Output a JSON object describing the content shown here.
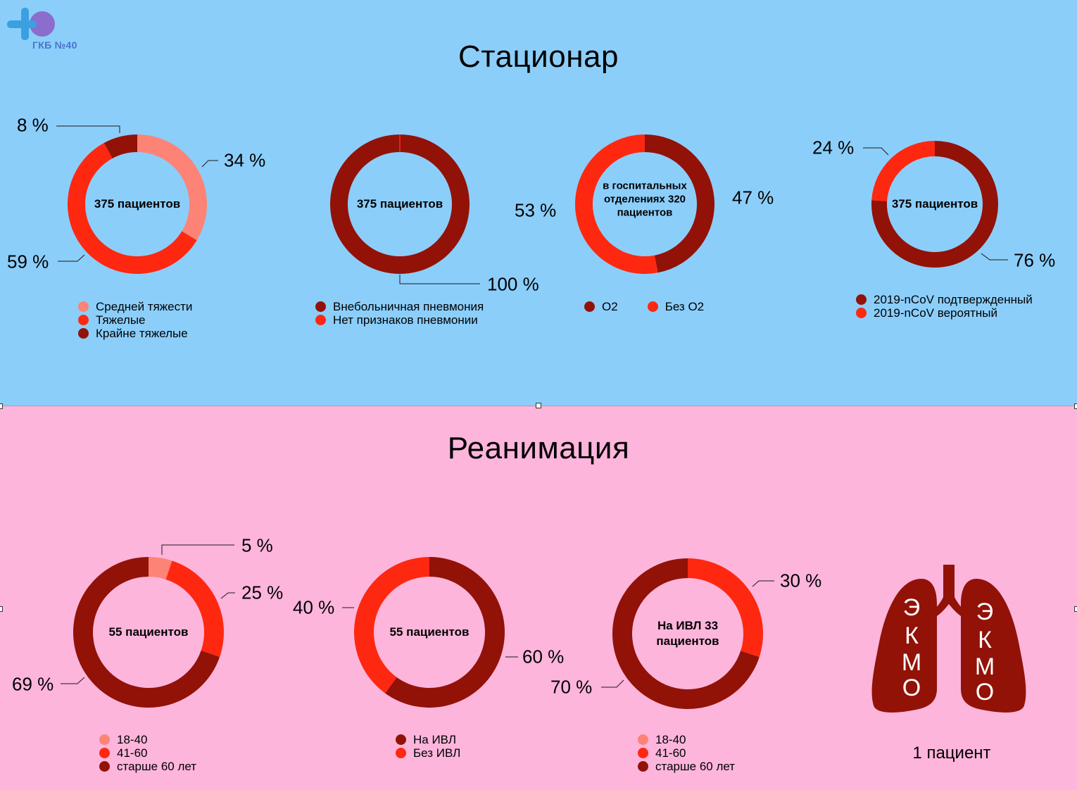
{
  "logo": {
    "text": "ГКБ №40"
  },
  "sections": {
    "top_title": "Стационар",
    "bottom_title": "Реанимация"
  },
  "colors": {
    "light": "#fc8375",
    "medium": "#fe2811",
    "dark": "#921208",
    "top_bg": "#8ccefa",
    "bottom_bg": "#fdb5dc"
  },
  "charts": [
    {
      "center": "375 пациентов",
      "slices": [
        {
          "label": "Средней тяжести",
          "value": 34,
          "pct_label": "34 %",
          "color": "#fc8375"
        },
        {
          "label": "Тяжелые",
          "value": 59,
          "pct_label": "59 %",
          "color": "#fe2811"
        },
        {
          "label": "Крайне тяжелые",
          "value": 8,
          "pct_label": "8 %",
          "color": "#921208"
        }
      ]
    },
    {
      "center": "375 пациентов",
      "slices": [
        {
          "label": "Внебольничная пневмония",
          "value": 100,
          "pct_label": "100 %",
          "color": "#921208"
        },
        {
          "label": "Нет признаков пневмонии",
          "value": 0,
          "pct_label": "",
          "color": "#fe2811"
        }
      ]
    },
    {
      "center": "в госпитальных отделениях 320 пациентов",
      "slices": [
        {
          "label": "O2",
          "value": 47,
          "pct_label": "47 %",
          "color": "#921208"
        },
        {
          "label": "Без O2",
          "value": 53,
          "pct_label": "53 %",
          "color": "#fe2811"
        }
      ]
    },
    {
      "center": "375 пациентов",
      "slices": [
        {
          "label": "2019-nCoV подтвержденный",
          "value": 76,
          "pct_label": "76 %",
          "color": "#921208"
        },
        {
          "label": "2019-nCoV вероятный",
          "value": 24,
          "pct_label": "24 %",
          "color": "#fe2811"
        }
      ]
    },
    {
      "center": "55 пациентов",
      "slices": [
        {
          "label": "18-40",
          "value": 5,
          "pct_label": "5 %",
          "color": "#fc8375"
        },
        {
          "label": "41-60",
          "value": 25,
          "pct_label": "25 %",
          "color": "#fe2811"
        },
        {
          "label": "старше 60 лет",
          "value": 69,
          "pct_label": "69 %",
          "color": "#921208"
        }
      ]
    },
    {
      "center": "55 пациентов",
      "slices": [
        {
          "label": "На ИВЛ",
          "value": 60,
          "pct_label": "60 %",
          "color": "#921208"
        },
        {
          "label": "Без ИВЛ",
          "value": 40,
          "pct_label": "40 %",
          "color": "#fe2811"
        }
      ]
    },
    {
      "center": "На ИВЛ 33 пациентов",
      "slices": [
        {
          "label": "18-40",
          "value": 0,
          "pct_label": "",
          "color": "#fc8375"
        },
        {
          "label": "41-60",
          "value": 30,
          "pct_label": "30 %",
          "color": "#fe2811"
        },
        {
          "label": "старше 60 лет",
          "value": 70,
          "pct_label": "70 %",
          "color": "#921208"
        }
      ]
    }
  ],
  "ekmo": {
    "left_letters": [
      "Э",
      "К",
      "М",
      "О"
    ],
    "right_letters": [
      "Э",
      "К",
      "М",
      "О"
    ],
    "caption": "1 пациент"
  },
  "chart_data": [
    {
      "type": "pie",
      "categories": [
        "Средней тяжести",
        "Тяжелые",
        "Крайне тяжелые"
      ],
      "values": [
        34,
        59,
        8
      ],
      "title": ""
    },
    {
      "type": "pie",
      "categories": [
        "Внебольничная пневмония",
        "Нет признаков пневмонии"
      ],
      "values": [
        100,
        0
      ],
      "title": ""
    },
    {
      "type": "pie",
      "categories": [
        "O2",
        "Без O2"
      ],
      "values": [
        47,
        53
      ],
      "title": ""
    },
    {
      "type": "pie",
      "categories": [
        "2019-nCoV подтвержденный",
        "2019-nCoV вероятный"
      ],
      "values": [
        76,
        24
      ],
      "title": ""
    },
    {
      "type": "pie",
      "categories": [
        "18-40",
        "41-60",
        "старше 60 лет"
      ],
      "values": [
        5,
        25,
        69
      ],
      "title": ""
    },
    {
      "type": "pie",
      "categories": [
        "На ИВЛ",
        "Без ИВЛ"
      ],
      "values": [
        60,
        40
      ],
      "title": ""
    },
    {
      "type": "pie",
      "categories": [
        "18-40",
        "41-60",
        "старше 60 лет"
      ],
      "values": [
        0,
        30,
        70
      ],
      "title": ""
    }
  ]
}
